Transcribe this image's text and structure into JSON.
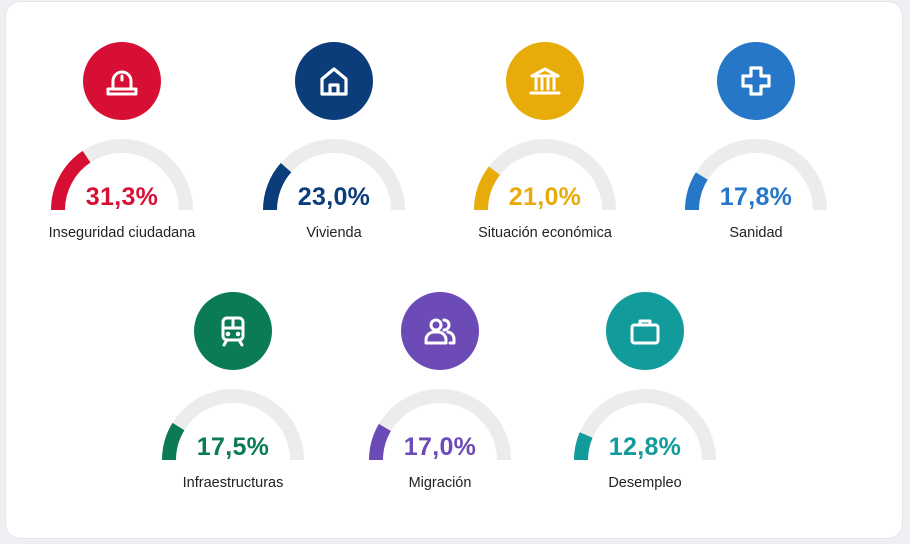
{
  "chart_data": {
    "type": "gauge",
    "max": 100,
    "track_color": "#ececec",
    "items": [
      {
        "label": "Inseguridad ciudadana",
        "value": 31.3,
        "value_label": "31,3%",
        "color": "#d80f35",
        "icon": "siren-icon"
      },
      {
        "label": "Vivienda",
        "value": 23.0,
        "value_label": "23,0%",
        "color": "#0a3d7a",
        "icon": "house-icon"
      },
      {
        "label": "Situación económica",
        "value": 21.0,
        "value_label": "21,0%",
        "color": "#e8ac0a",
        "icon": "bank-icon"
      },
      {
        "label": "Sanidad",
        "value": 17.8,
        "value_label": "17,8%",
        "color": "#2677c7",
        "icon": "medical-cross-icon"
      },
      {
        "label": "Infraestructuras",
        "value": 17.5,
        "value_label": "17,5%",
        "color": "#0b7b53",
        "icon": "train-icon"
      },
      {
        "label": "Migración",
        "value": 17.0,
        "value_label": "17,0%",
        "color": "#6c4bb6",
        "icon": "people-icon"
      },
      {
        "label": "Desempleo",
        "value": 12.8,
        "value_label": "12,8%",
        "color": "#119b9a",
        "icon": "briefcase-icon"
      }
    ]
  }
}
